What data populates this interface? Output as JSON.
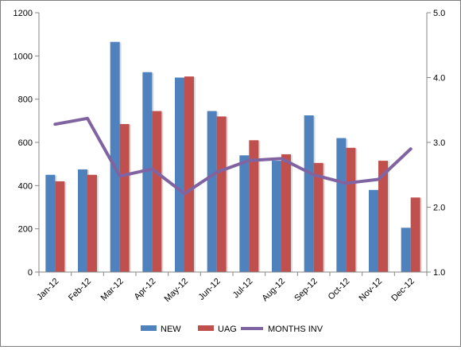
{
  "chart_data": {
    "type": "bar",
    "title": "",
    "categories": [
      "Jan-12",
      "Feb-12",
      "Mar-12",
      "Apr-12",
      "May-12",
      "Jun-12",
      "Jul-12",
      "Aug-12",
      "Sep-12",
      "Oct-12",
      "Nov-12",
      "Dec-12"
    ],
    "series": [
      {
        "name": "NEW",
        "type": "bar",
        "axis": "left",
        "color": "#4f81bd",
        "values": [
          450,
          475,
          1065,
          925,
          900,
          745,
          540,
          515,
          725,
          620,
          380,
          205
        ]
      },
      {
        "name": "UAG",
        "type": "bar",
        "axis": "left",
        "color": "#c0504d",
        "values": [
          420,
          450,
          685,
          745,
          905,
          720,
          610,
          545,
          505,
          575,
          515,
          345
        ]
      },
      {
        "name": "MONTHS INV",
        "type": "line",
        "axis": "right",
        "color": "#8064a2",
        "values": [
          3.28,
          3.37,
          2.48,
          2.59,
          2.21,
          2.54,
          2.72,
          2.75,
          2.5,
          2.37,
          2.43,
          2.9
        ]
      }
    ],
    "left_axis": {
      "min": 0,
      "max": 1200,
      "step": 200,
      "tick_labels": [
        "0",
        "200",
        "400",
        "600",
        "800",
        "1000",
        "1200"
      ]
    },
    "right_axis": {
      "min": 1.0,
      "max": 5.0,
      "step": 1.0,
      "tick_labels": [
        "1.0",
        "2.0",
        "3.0",
        "4.0",
        "5.0"
      ]
    },
    "grid": false,
    "legend_position": "bottom"
  }
}
